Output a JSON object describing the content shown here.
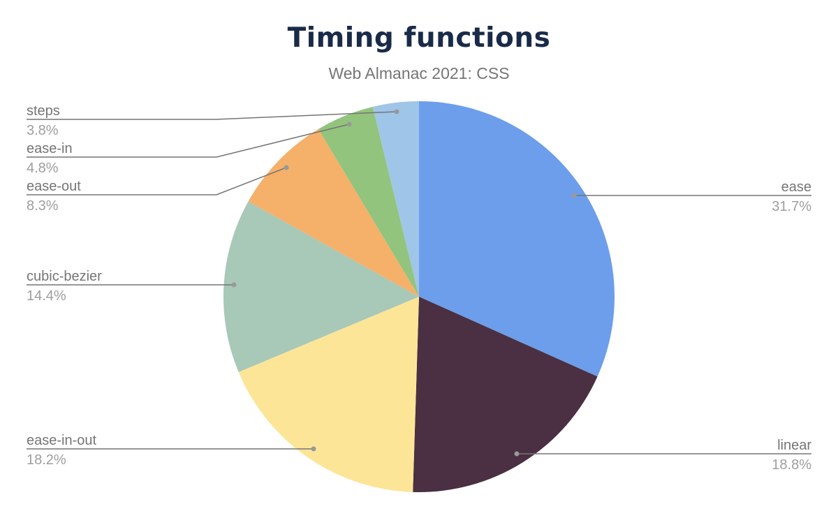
{
  "chart_data": {
    "type": "pie",
    "title": "Timing functions",
    "subtitle": "Web Almanac 2021: CSS",
    "start_angle": "top, clockwise",
    "slices": [
      {
        "label": "ease",
        "value": 31.7,
        "display": "31.7%",
        "color": "#6d9eeb"
      },
      {
        "label": "linear",
        "value": 18.8,
        "display": "18.8%",
        "color": "#4a3042"
      },
      {
        "label": "ease-in-out",
        "value": 18.2,
        "display": "18.2%",
        "color": "#fde598"
      },
      {
        "label": "cubic-bezier",
        "value": 14.4,
        "display": "14.4%",
        "color": "#a8c8b8"
      },
      {
        "label": "ease-out",
        "value": 8.3,
        "display": "8.3%",
        "color": "#f5b06a"
      },
      {
        "label": "ease-in",
        "value": 4.8,
        "display": "4.8%",
        "color": "#93c47d"
      },
      {
        "label": "steps",
        "value": 3.8,
        "display": "3.8%",
        "color": "#9fc5e8"
      }
    ]
  }
}
